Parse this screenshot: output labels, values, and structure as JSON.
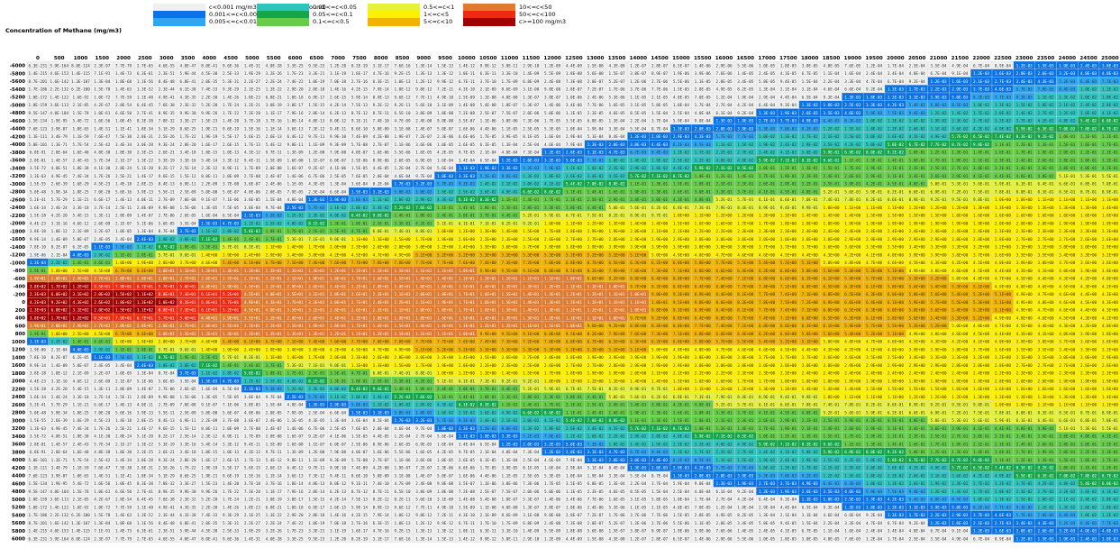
{
  "legend": [
    {
      "label": "c<0.001 mg/m3 (less than background)",
      "color": "#f0f0f0"
    },
    {
      "label": "0.001<=c<0.005",
      "color": "#0a74e6"
    },
    {
      "label": "0.005<=c<0.01",
      "color": "#2ea6f2"
    },
    {
      "label": "0.01<=c<0.05",
      "color": "#2fc4c0"
    },
    {
      "label": "0.05<=c<0.1",
      "color": "#14a64a"
    },
    {
      "label": "0.1<=c<0.5",
      "color": "#66cc4a"
    },
    {
      "label": "0.5<=c<1",
      "color": "#e6f23a"
    },
    {
      "label": "1<=c<5",
      "color": "#ffef00"
    },
    {
      "label": "5<=c<10",
      "color": "#f2b200"
    },
    {
      "label": "10<=c<50",
      "color": "#e07a2e"
    },
    {
      "label": "50<=c<100",
      "color": "#ee2a10"
    },
    {
      "label": "c>=100 mg/m3",
      "color": "#a00000"
    }
  ],
  "header": {
    "title": "Concentration of Methane (mg/m3)"
  },
  "chart_data": {
    "type": "heatmap",
    "title": "Concentration of Methane (mg/m3)",
    "x_ticks": [
      0,
      500,
      1000,
      1500,
      2000,
      2500,
      3000,
      3500,
      4000,
      4500,
      5000,
      5500,
      6000,
      6500,
      7000,
      7500,
      8000,
      8500,
      9000,
      9500,
      10000,
      10500,
      11000,
      11500,
      12000,
      12500,
      13000,
      13500,
      14000,
      14500,
      15000,
      15500,
      16000,
      16500,
      17000,
      17500,
      18000,
      18500,
      19000,
      19500,
      20000,
      20500,
      21000,
      21500,
      22000,
      22500,
      23000,
      23500,
      24000,
      24500,
      25000
    ],
    "y_ticks": [
      -6000,
      -5800,
      -5600,
      -5400,
      -5200,
      -5000,
      -4800,
      -4600,
      -4400,
      -4200,
      -4000,
      -3800,
      -3600,
      -3400,
      -3200,
      -3000,
      -2800,
      -2600,
      -2400,
      -2200,
      -2000,
      -1800,
      -1600,
      -1400,
      -1200,
      -1000,
      -800,
      -600,
      -400,
      -200,
      0,
      200,
      400,
      600,
      800,
      1000,
      1200,
      1400,
      1600,
      1800,
      2000,
      2200,
      2400,
      2600,
      2800,
      3000,
      3200,
      3400,
      3600,
      3800,
      4000,
      4200,
      4400,
      4600,
      4800,
      5000,
      5200,
      5400,
      5600,
      5800,
      6000
    ],
    "legend_position": "top",
    "grid": true,
    "note": "cell values shown as small scientific-notation labels (e.g. 8.8E-08); colored by concentration band, plume centered at y=0 widening with x"
  }
}
